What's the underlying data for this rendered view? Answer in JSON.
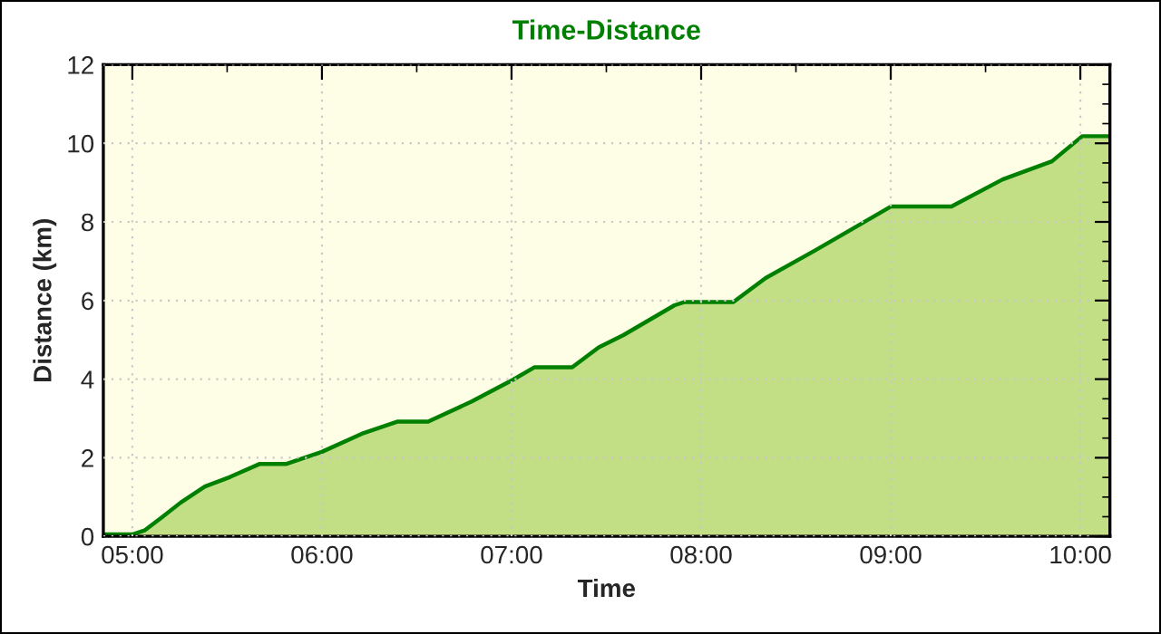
{
  "chart_data": {
    "type": "area",
    "title": "Time-Distance",
    "xlabel": "Time",
    "ylabel": "Distance (km)",
    "series": [
      {
        "color": "#008000",
        "x": [
          4.847,
          5.0,
          5.064,
          5.16,
          5.255,
          5.383,
          5.51,
          5.67,
          5.81,
          6.0,
          6.21,
          6.4,
          6.56,
          6.79,
          7.01,
          7.12,
          7.32,
          7.46,
          7.59,
          7.86,
          7.91,
          8.17,
          8.34,
          8.6,
          8.79,
          9.0,
          9.32,
          9.59,
          9.85,
          10.01,
          10.156
        ],
        "values": [
          0.05,
          0.05,
          0.15,
          0.5,
          0.86,
          1.27,
          1.5,
          1.84,
          1.84,
          2.15,
          2.61,
          2.92,
          2.92,
          3.43,
          3.99,
          4.3,
          4.3,
          4.81,
          5.12,
          5.88,
          5.96,
          5.96,
          6.57,
          7.27,
          7.8,
          8.39,
          8.39,
          9.08,
          9.54,
          10.18,
          10.18
        ]
      }
    ],
    "xlim": [
      4.847,
      10.156
    ],
    "xticks": [
      {
        "value": 5,
        "label": "05:00"
      },
      {
        "value": 6,
        "label": "06:00"
      },
      {
        "value": 7,
        "label": "07:00"
      },
      {
        "value": 8,
        "label": "08:00"
      },
      {
        "value": 9,
        "label": "09:00"
      },
      {
        "value": 10,
        "label": "10:00"
      }
    ],
    "ylim": [
      0,
      12
    ],
    "yticks": [
      0,
      2,
      4,
      6,
      8,
      10,
      12
    ],
    "grid": true
  }
}
